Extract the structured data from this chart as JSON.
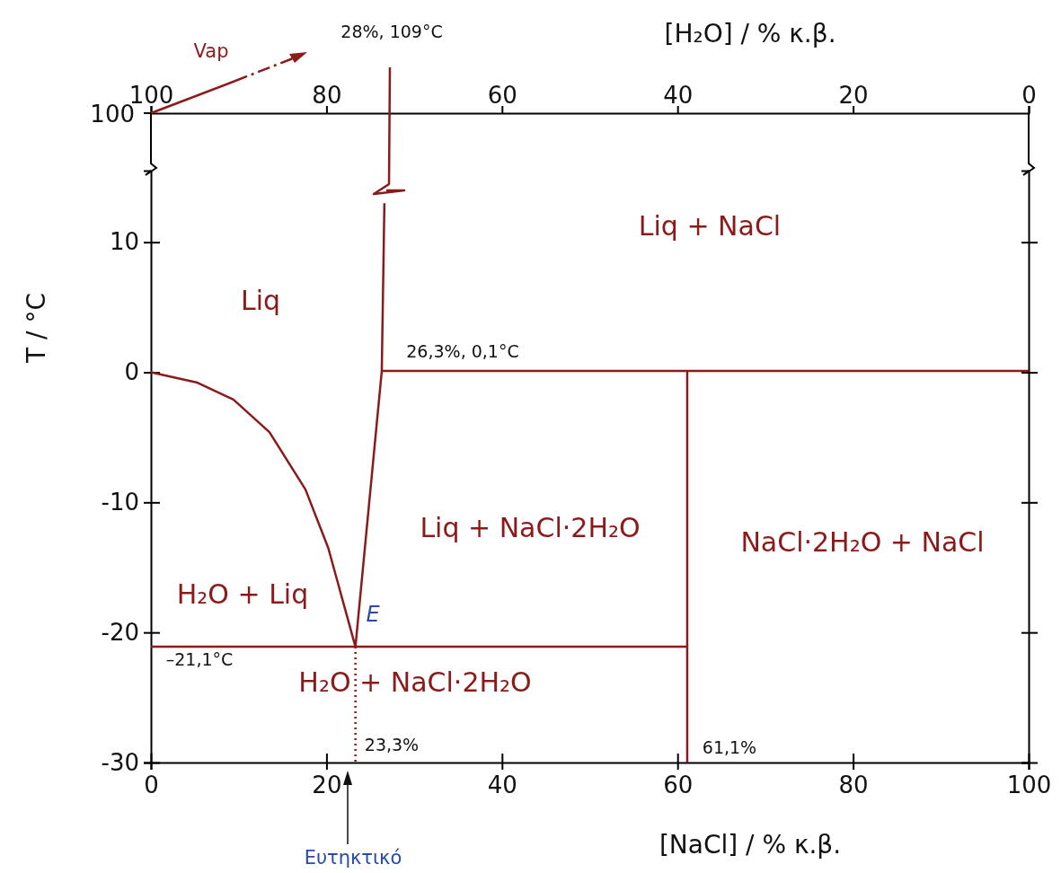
{
  "chart_data": {
    "type": "line",
    "xlim": [
      0,
      100
    ],
    "ylim": [
      -30,
      15.5
    ],
    "xticks": [
      0,
      20,
      40,
      60,
      80,
      100
    ],
    "yticks": [
      -30,
      -20,
      -10,
      0,
      10
    ],
    "xlabel": "[NaCl] / % κ.β.",
    "ylabel": "T / °C",
    "x2lim": [
      100,
      0
    ],
    "x2ticks": [
      100,
      80,
      60,
      40,
      20,
      0
    ],
    "x2label": "[H₂O] / % κ.β.",
    "series": [
      {
        "color": "#8b1a1a",
        "x": [
          0,
          5.3,
          9.4,
          13.5,
          17.6,
          20.2,
          23.3
        ],
        "values": [
          0,
          -0.8,
          -2.1,
          -4.6,
          -9.0,
          -13.5,
          -21.1
        ]
      },
      {
        "color": "#8b1a1a",
        "x": [
          23.3,
          26.3,
          26.6
        ],
        "values": [
          -21.1,
          0.1,
          13.0
        ]
      },
      {
        "color": "#8b1a1a",
        "x": [
          26.3,
          100
        ],
        "values": [
          0.1,
          0.1
        ]
      },
      {
        "color": "#8b1a1a",
        "x": [
          61.1,
          61.1
        ],
        "values": [
          0.1,
          -30
        ]
      },
      {
        "color": "#8b1a1a",
        "x": [
          0,
          61.1
        ],
        "values": [
          -21.1,
          -21.1
        ]
      },
      {
        "color": "#8b1a1a",
        "x": [
          23.3,
          23.3
        ],
        "values": [
          -21.1,
          -30
        ],
        "line_style": "dotted"
      }
    ],
    "annotations": [
      "Vap",
      "28%, 109°C",
      "100",
      "Liq",
      "Liq + NaCl",
      "Liq + NaCl·2H₂O",
      "NaCl·2H₂O + NaCl",
      "H₂O + Liq",
      "H₂O + NaCl·2H₂O",
      "E",
      "26,3%, 0,1°C",
      "–21,1°C",
      "23,3%",
      "61,1%",
      "Ευτηκτικό"
    ]
  }
}
